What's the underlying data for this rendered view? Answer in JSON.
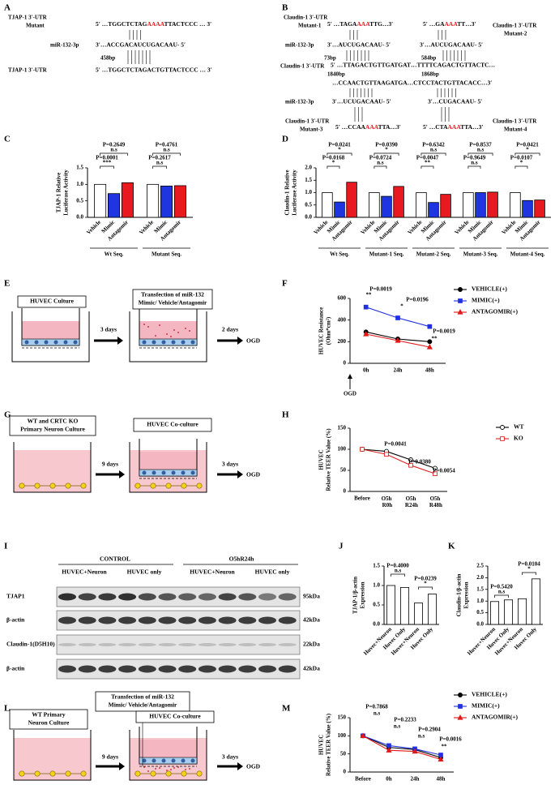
{
  "panel_labels": [
    "A",
    "B",
    "C",
    "D",
    "E",
    "F",
    "G",
    "H",
    "I",
    "J",
    "K",
    "L",
    "M"
  ],
  "panel_A": [
    "TJAP-1 3′-UTR",
    "Mutant",
    "5′ …TGGCTCTAG",
    "AAAA",
    "TTACTCCC … 3′",
    "miR-132-3p",
    "3′…ACCGACAUCUGACAAU- 5′",
    "458bp",
    "TJAP-1 3′-UTR",
    "5′ …TGGCTCTAGACTGTTACTCCC … 3′"
  ],
  "panel_B": [
    "Claudin-1 3′-UTR",
    "Mutant-1",
    "5′ …TAGA",
    "AAA",
    "TTG…3′",
    "5′ …GA",
    "AAA",
    "TT…3′",
    "Claudin-1 3′-UTR",
    "Mutant-2",
    "miR-132-3p",
    "3′…AUCUGACAAU- 5′",
    "3′…AUCUGACAAU- 5′",
    "73bp",
    "584bp",
    "Claudin-1 3′-UTR",
    "5′ …TTAGACTGTTGATGAT…TTTTCAGACTGTTACTC…",
    "1840bp",
    "1868bp",
    "…CCAACTGTTAAGATGA…CTCCTACTGTTACACC…3′",
    "miR-132-3p",
    "3′…UCUGACAAU- 5′",
    "3′…CUGACAAU- 5′",
    "Claudin-1 3′-UTR",
    "Mutant-3",
    "5′ …CCAA",
    "AAA",
    "TTA…3′",
    "Claudin-1 3′-UTR",
    "Mutant-4",
    "5′ …CTA",
    "AAA",
    "TTA…3′"
  ],
  "diagram_E": [
    "HUVEC Culture",
    "Transfection of miR-132",
    "Mimic/ Vehicle/Antagomir",
    "3 days",
    "2 days",
    "OGD"
  ],
  "diagram_G": [
    "WT and CRTC KO",
    "Primary Neuron  Culture",
    "HUVEC Co-culture",
    "9 days",
    "3 days",
    "OGD"
  ],
  "diagram_L": [
    "WT Primary",
    "Neuron  Culture",
    "Transfection of miR-132",
    "Mimic/ Vehicle/Antagomir",
    "HUVEC Co-culture",
    "9 days",
    "3 days",
    "OGD"
  ],
  "blot": {
    "conditions": [
      "CONTROL",
      "O5hR24h"
    ],
    "groups": [
      "HUVEC+Neuron",
      "HUVEC only",
      "HUVEC+Neuron",
      "HUVEC only"
    ],
    "rows": [
      {
        "label": "TJAP1",
        "size": "95kDa"
      },
      {
        "label": "β-actin",
        "size": "42kDa"
      },
      {
        "label": "Claudin-1(D5H10)",
        "size": "22kDa"
      },
      {
        "label": "β-actin",
        "size": "42kDa"
      }
    ]
  },
  "chart_data": [
    {
      "type": "bar",
      "ylabel": [
        "TJAP-1 Relative",
        "Luciferase Activity"
      ],
      "categories": [
        "Wt Seq.",
        "Mutant Seq."
      ],
      "series": [
        {
          "name": "Vehicle",
          "color": "#ffffff",
          "values": [
            1.0,
            1.0
          ]
        },
        {
          "name": "Mimic",
          "color": "#1f35e0",
          "values": [
            0.72,
            0.95
          ]
        },
        {
          "name": "Antagomir",
          "color": "#e8191f",
          "values": [
            1.05,
            0.96
          ]
        }
      ],
      "ylim": [
        0,
        1.5
      ],
      "yticks": [
        {
          "value": 0,
          "label": "0.0"
        },
        0.5,
        {
          "value": 1,
          "label": "1.0"
        },
        1.5
      ],
      "annotations": [
        "P=0.2649",
        "n.s",
        "P=0.0001",
        "***",
        "P=0.4761",
        "n.s",
        "P=0.2617",
        "n.s"
      ]
    },
    {
      "type": "bar",
      "ylabel": [
        "Claudin-1 Relative",
        "Luciferase Activity"
      ],
      "categories": [
        "Wt Seq.",
        "Mutant-1 Seq.",
        "Mutant-2 Seq.",
        "Mutant-3 Seq.",
        "Mutant-4 Seq."
      ],
      "series": [
        {
          "name": "Vehicle",
          "color": "#ffffff",
          "values": [
            1.0,
            1.0,
            1.0,
            1.0,
            1.0
          ]
        },
        {
          "name": "Mimic",
          "color": "#1f35e0",
          "values": [
            0.62,
            0.85,
            0.6,
            1.0,
            0.68
          ]
        },
        {
          "name": "Antagomir",
          "color": "#e8191f",
          "values": [
            1.42,
            1.25,
            0.93,
            1.02,
            0.7
          ]
        }
      ],
      "ylim": [
        0,
        2
      ],
      "yticks": [
        {
          "value": 0,
          "label": "0.0"
        },
        0.5,
        {
          "value": 1,
          "label": "1.0"
        },
        1.5,
        {
          "value": 2,
          "label": "2.0"
        }
      ],
      "annotations": [
        "P=0.0241",
        "*",
        "P=0.0168",
        "*",
        "P=0.0390",
        "*",
        "P=0.0724",
        "n.s",
        "P=0.6342",
        "n.s",
        "P=0.0047",
        "**",
        "P=0.8537",
        "n.s",
        "P=0.9649",
        "n.s",
        "P=0.0421",
        "*",
        "P=0.0107",
        "*"
      ]
    },
    {
      "type": "line",
      "ylabel": [
        "HUVEC Resistance",
        "(Ohm*cm²)"
      ],
      "categories": [
        "0h",
        "24h",
        "48h"
      ],
      "series": [
        {
          "name": "VEHICLE(+)",
          "color": "#000000",
          "marker": "circle",
          "values": [
            290,
            225,
            200
          ]
        },
        {
          "name": "MIMIC(+)",
          "color": "#2030e0",
          "marker": "square",
          "values": [
            520,
            420,
            340
          ]
        },
        {
          "name": "ANTAGOMIR(+)",
          "color": "#e01818",
          "marker": "triangle",
          "values": [
            270,
            210,
            150
          ]
        }
      ],
      "ylim": [
        0,
        600
      ],
      "yticks": [
        0,
        200,
        400,
        600
      ],
      "legend": "right",
      "x_note": "OGD",
      "annotations": [
        "P=0.0019",
        "**",
        "P=0.0196",
        "*",
        "P=0.0019",
        "**"
      ]
    },
    {
      "type": "line",
      "ylabel": [
        "HUVEC",
        "Relative TEER Value (%)"
      ],
      "categories": [
        "Before",
        "O5h R0h",
        "O5h R24h",
        "O5h R48h"
      ],
      "series": [
        {
          "name": "WT",
          "color": "#000000",
          "marker": "open-circle",
          "values": [
            100,
            95,
            75,
            55
          ]
        },
        {
          "name": "KO",
          "color": "#e02020",
          "marker": "open-square",
          "values": [
            100,
            88,
            62,
            42
          ]
        }
      ],
      "ylim": [
        0,
        150
      ],
      "yticks": [
        0,
        50,
        100,
        150
      ],
      "legend": "right",
      "annotations": [
        "P=0.0041",
        "P=0.0380",
        "P=0.0054"
      ]
    },
    {
      "type": "bar",
      "ylabel": [
        "TJAP-1/β-actin",
        "Expression"
      ],
      "categories": [
        "Huvec+Neuron",
        "Huvec Only",
        "Huvec+Neuron",
        "Huvec Only"
      ],
      "values": [
        1.0,
        0.95,
        0.55,
        0.78
      ],
      "color": "#ffffff",
      "ylim": [
        0,
        1.5
      ],
      "yticks": [
        {
          "value": 0,
          "label": "0.0"
        },
        0.5,
        {
          "value": 1,
          "label": "1.0"
        },
        1.5
      ],
      "annotations": [
        "P=0.4000",
        "n.s",
        "P=0.0239",
        "*"
      ]
    },
    {
      "type": "bar",
      "ylabel": [
        "Claudin-1/β-actin",
        "Expression"
      ],
      "categories": [
        "Huvec+Neuron",
        "Huvec Only",
        "Huvec+Neuron",
        "Huvec Only"
      ],
      "values": [
        0.98,
        1.05,
        1.1,
        1.95
      ],
      "color": "#ffffff",
      "ylim": [
        0,
        2.5
      ],
      "yticks": [
        {
          "value": 0,
          "label": "0.0"
        },
        0.5,
        {
          "value": 1,
          "label": "1.0"
        },
        1.5,
        {
          "value": 2,
          "label": "2.0"
        },
        2.5
      ],
      "annotations": [
        "P=0.5420",
        "n.s",
        "P=0.0104",
        "*"
      ]
    },
    {
      "type": "line",
      "ylabel": [
        "HUVEC",
        "Relative TEER Value (%)"
      ],
      "categories": [
        "Before",
        "0h",
        "24h",
        "48h"
      ],
      "series": [
        {
          "name": "VEHICLE(+)",
          "color": "#000000",
          "marker": "circle",
          "values": [
            100,
            68,
            62,
            40
          ]
        },
        {
          "name": "MIMIC(+)",
          "color": "#2030e0",
          "marker": "square",
          "values": [
            100,
            73,
            64,
            47
          ]
        },
        {
          "name": "ANTAGOMIR(+)",
          "color": "#e01818",
          "marker": "triangle",
          "values": [
            100,
            60,
            57,
            35
          ]
        }
      ],
      "ylim": [
        0,
        150
      ],
      "yticks": [
        0,
        50,
        100,
        150
      ],
      "legend": "right",
      "annotations": [
        "P=0.7868",
        "n.s",
        "P=0.2233",
        "n.s",
        "P=0.2904",
        "n.s",
        "P=0.0016",
        "**"
      ]
    }
  ]
}
